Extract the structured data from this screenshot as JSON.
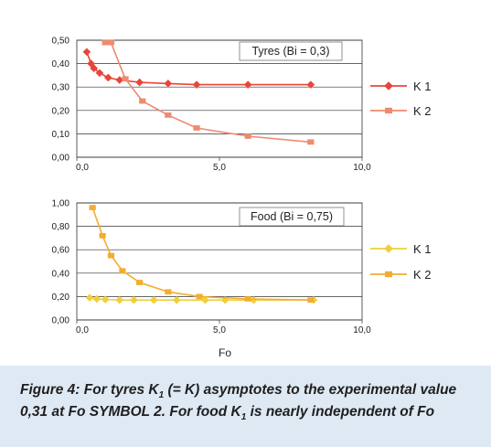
{
  "chart_data": [
    {
      "type": "line",
      "title": "Tyres (Bi = 0,3)",
      "xlabel": "",
      "ylabel": "",
      "xlim": [
        0,
        10
      ],
      "ylim": [
        0,
        0.5
      ],
      "x_ticks": [
        "0,0",
        "5,0",
        "10,0"
      ],
      "y_ticks": [
        "0,00",
        "0,10",
        "0,20",
        "0,30",
        "0,40",
        "0,50"
      ],
      "grid": "horizontal",
      "legend_position": "right",
      "series": [
        {
          "name": "K 1",
          "color": "#e8463a",
          "marker": "diamond",
          "x": [
            0.35,
            0.5,
            0.6,
            0.8,
            1.1,
            1.5,
            2.2,
            3.2,
            4.2,
            6.0,
            8.2
          ],
          "y": [
            0.45,
            0.4,
            0.38,
            0.36,
            0.34,
            0.33,
            0.32,
            0.315,
            0.31,
            0.31,
            0.31
          ]
        },
        {
          "name": "K 2",
          "color": "#ee8a6f",
          "marker": "square",
          "x": [
            1.0,
            1.2,
            1.7,
            2.3,
            3.2,
            4.2,
            6.0,
            8.2
          ],
          "y": [
            0.49,
            0.49,
            0.335,
            0.24,
            0.18,
            0.125,
            0.09,
            0.065
          ]
        }
      ]
    },
    {
      "type": "line",
      "title": "Food (Bi = 0,75)",
      "xlabel": "Fo",
      "ylabel": "",
      "xlim": [
        0,
        10
      ],
      "ylim": [
        0,
        1.0
      ],
      "x_ticks": [
        "0,0",
        "5,0",
        "10,0"
      ],
      "y_ticks": [
        "0,00",
        "0,20",
        "0,40",
        "0,60",
        "0,80",
        "1,00"
      ],
      "grid": "horizontal",
      "legend_position": "right",
      "series": [
        {
          "name": "K 1",
          "color": "#f1cf38",
          "marker": "diamond",
          "x": [
            0.45,
            0.7,
            1.0,
            1.5,
            2.0,
            2.7,
            3.5,
            4.5,
            5.2,
            6.2,
            8.3
          ],
          "y": [
            0.19,
            0.18,
            0.175,
            0.17,
            0.17,
            0.17,
            0.17,
            0.17,
            0.17,
            0.17,
            0.17
          ]
        },
        {
          "name": "K 2",
          "color": "#f3ad2e",
          "marker": "square",
          "x": [
            0.55,
            0.9,
            1.2,
            1.6,
            2.2,
            3.2,
            4.3,
            6.0,
            8.2
          ],
          "y": [
            0.96,
            0.72,
            0.55,
            0.42,
            0.32,
            0.24,
            0.2,
            0.18,
            0.17
          ]
        }
      ]
    }
  ],
  "caption": {
    "part1": "Figure 4: For tyres K",
    "sub1": "1",
    "part2": " (= K) asymptotes to the experimental value 0,31 at Fo SYMBOL 2. For food K",
    "sub2": "1",
    "part3": " is nearly independent of Fo"
  }
}
